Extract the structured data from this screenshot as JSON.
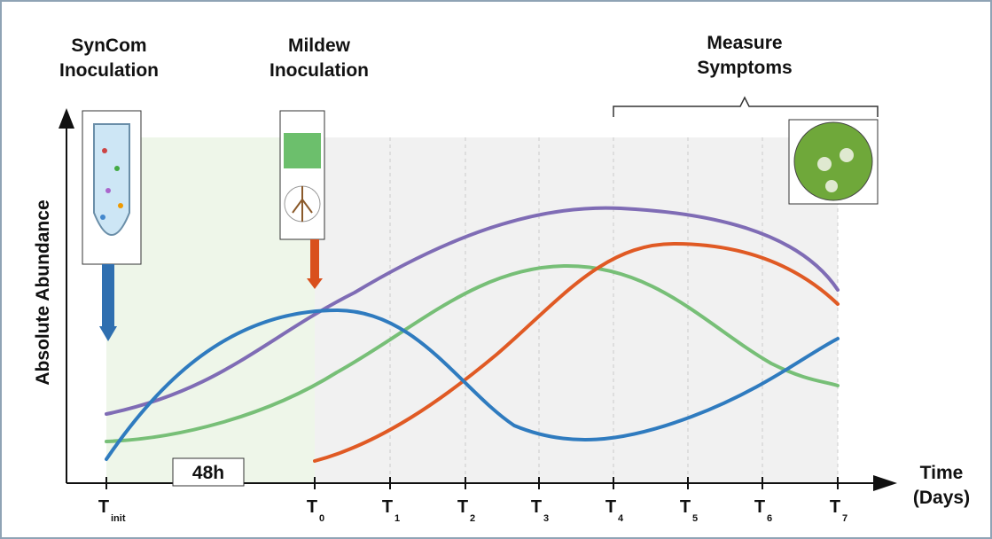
{
  "labels": {
    "syncom": [
      "SynCom",
      "Inoculation"
    ],
    "mildew": [
      "Mildew",
      "Inoculation"
    ],
    "measure": [
      "Measure",
      "Symptoms"
    ],
    "y_axis": "Absolute Abundance",
    "x_axis": [
      "Time",
      "(Days)"
    ],
    "duration": "48h"
  },
  "ticks": [
    {
      "main": "T",
      "sub": "init"
    },
    {
      "main": "T",
      "sub": "0"
    },
    {
      "main": "T",
      "sub": "1"
    },
    {
      "main": "T",
      "sub": "2"
    },
    {
      "main": "T",
      "sub": "3"
    },
    {
      "main": "T",
      "sub": "4"
    },
    {
      "main": "T",
      "sub": "5"
    },
    {
      "main": "T",
      "sub": "6"
    },
    {
      "main": "T",
      "sub": "7"
    }
  ]
}
